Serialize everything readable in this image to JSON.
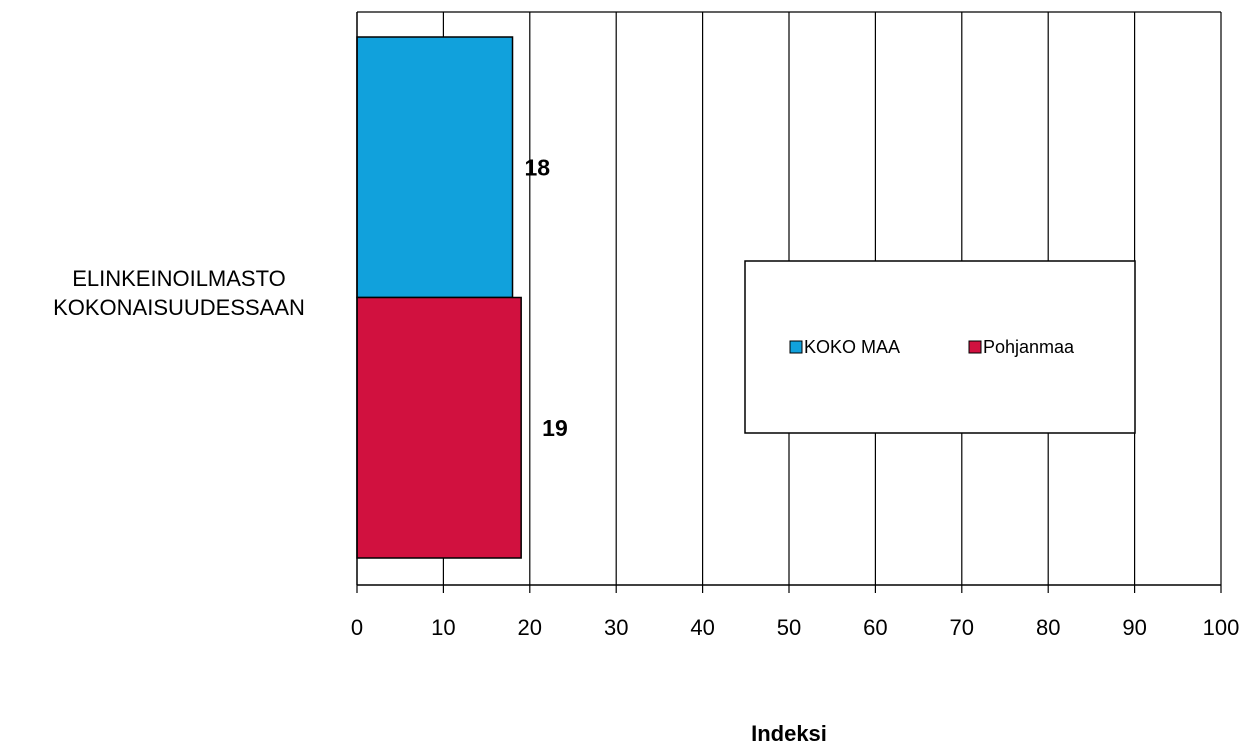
{
  "chart_data": {
    "type": "bar",
    "orientation": "horizontal",
    "title": "",
    "xlabel": "Indeksi",
    "ylabel": "",
    "categories": [
      "ELINKEINOILMASTO KOKONAISUUDESSAAN"
    ],
    "category_label_lines": [
      "ELINKEINOILMASTO",
      "KOKONAISUUDESSAAN"
    ],
    "series": [
      {
        "name": "KOKO MAA",
        "values": [
          18
        ],
        "color": "#11a1dc"
      },
      {
        "name": "Pohjanmaa",
        "values": [
          19
        ],
        "color": "#d1113f"
      }
    ],
    "data_labels": [
      "18",
      "19"
    ],
    "xlim": [
      0,
      100
    ],
    "xticks": [
      "0",
      "10",
      "20",
      "30",
      "40",
      "50",
      "60",
      "70",
      "80",
      "90",
      "100"
    ],
    "grid": "vertical",
    "legend": "center-right"
  }
}
